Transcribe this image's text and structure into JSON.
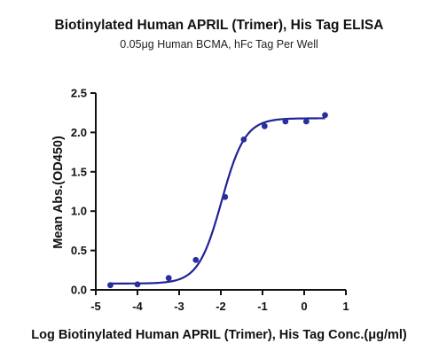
{
  "chart_data": {
    "type": "scatter",
    "title": "Biotinylated Human APRIL (Trimer), His Tag ELISA",
    "subtitle": "0.05μg Human BCMA, hFc Tag Per Well",
    "xlabel": "Log Biotinylated Human APRIL (Trimer), His Tag Conc.(μg/ml)",
    "ylabel": "Mean Abs.(OD450)",
    "xlim": [
      -5,
      1
    ],
    "ylim": [
      0,
      2.5
    ],
    "xticks": [
      -5,
      -4,
      -3,
      -2,
      -1,
      0,
      1
    ],
    "xtick_labels": [
      "-5",
      "-4",
      "-3",
      "-2",
      "-1",
      "0",
      "1"
    ],
    "yticks": [
      0,
      0.5,
      1,
      1.5,
      2,
      2.5
    ],
    "ytick_labels": [
      "0.0",
      "0.5",
      "1.0",
      "1.5",
      "2.0",
      "2.5"
    ],
    "grid": false,
    "legend": "none",
    "colors": {
      "marker": "#2a2f9e",
      "curve": "#1d2496",
      "axis": "#111111"
    },
    "series": [
      {
        "x": [
          -4.65,
          -4.0,
          -3.25,
          -2.6,
          -1.9,
          -1.45,
          -0.95,
          -0.45,
          0.05,
          0.5
        ],
        "y": [
          0.06,
          0.07,
          0.15,
          0.38,
          1.18,
          1.91,
          2.08,
          2.14,
          2.14,
          2.22
        ]
      }
    ],
    "fit_curve": {
      "model": "4PL",
      "bottom": 0.08,
      "top": 2.18,
      "log_ec50": -1.98,
      "hill_slope": 1.55,
      "x_range": [
        -4.65,
        0.5
      ]
    }
  }
}
